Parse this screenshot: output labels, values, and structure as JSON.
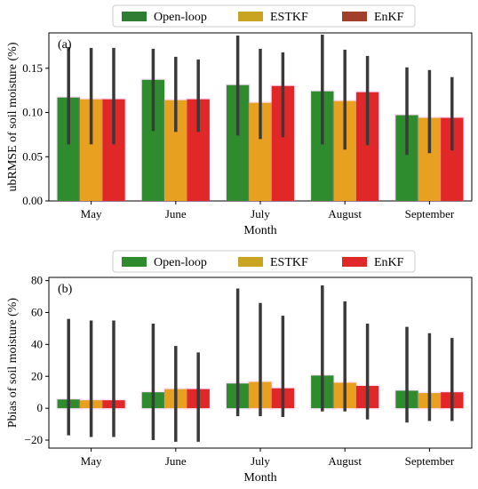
{
  "chart_data": [
    {
      "type": "bar",
      "panel_label": "(a)",
      "xlabel": "Month",
      "ylabel": "ubRMSE of soil moisture (%)",
      "categories": [
        "May",
        "June",
        "July",
        "August",
        "September"
      ],
      "ylim": [
        0,
        0.19
      ],
      "yticks": [
        "0.00",
        "0.05",
        "0.10",
        "0.15"
      ],
      "ytick_values": [
        0,
        0.05,
        0.1,
        0.15
      ],
      "legend_position": "top-center",
      "series": [
        {
          "name": "Open-loop",
          "legend_color": "#2e7d32",
          "color": "#2e8b2e",
          "values": [
            0.117,
            0.137,
            0.131,
            0.124,
            0.097
          ],
          "err_low": [
            0.064,
            0.079,
            0.074,
            0.064,
            0.052
          ],
          "err_high": [
            0.174,
            0.172,
            0.187,
            0.188,
            0.151
          ]
        },
        {
          "name": "ESTKF",
          "legend_color": "#c8a420",
          "color": "#e8a020",
          "values": [
            0.115,
            0.114,
            0.111,
            0.113,
            0.094
          ],
          "err_low": [
            0.064,
            0.078,
            0.07,
            0.058,
            0.054
          ],
          "err_high": [
            0.173,
            0.163,
            0.172,
            0.171,
            0.148
          ]
        },
        {
          "name": "EnKF",
          "legend_color": "#a0402a",
          "color": "#e02828",
          "values": [
            0.115,
            0.115,
            0.13,
            0.123,
            0.094
          ],
          "err_low": [
            0.064,
            0.078,
            0.072,
            0.063,
            0.057
          ],
          "err_high": [
            0.173,
            0.16,
            0.168,
            0.164,
            0.14
          ]
        }
      ]
    },
    {
      "type": "bar",
      "panel_label": "(b)",
      "xlabel": "Month",
      "ylabel": "Pbias of soil moisture (%)",
      "categories": [
        "May",
        "June",
        "July",
        "August",
        "September"
      ],
      "ylim": [
        -25,
        82
      ],
      "yticks": [
        "−20",
        "0",
        "20",
        "40",
        "60",
        "80"
      ],
      "ytick_values": [
        -20,
        0,
        20,
        40,
        60,
        80
      ],
      "legend_position": "top-center",
      "series": [
        {
          "name": "Open-loop",
          "legend_color": "#2e8b2e",
          "color": "#2e8b2e",
          "values": [
            5.5,
            10,
            15.5,
            20.5,
            11
          ],
          "err_low": [
            -17,
            -20,
            -5,
            -2,
            -9
          ],
          "err_high": [
            56,
            53,
            75,
            77,
            51
          ]
        },
        {
          "name": "ESTKF",
          "legend_color": "#c8a420",
          "color": "#e8a020",
          "values": [
            5,
            12,
            16.5,
            16,
            9.5
          ],
          "err_low": [
            -18,
            -21,
            -5,
            -2,
            -8
          ],
          "err_high": [
            55,
            39,
            66,
            67,
            47
          ]
        },
        {
          "name": "EnKF",
          "legend_color": "#e02828",
          "color": "#e02828",
          "values": [
            5,
            12,
            12.5,
            14,
            10
          ],
          "err_low": [
            -18,
            -21,
            -5.5,
            -7,
            -8
          ],
          "err_high": [
            55,
            35,
            58,
            53,
            44
          ]
        }
      ]
    }
  ]
}
